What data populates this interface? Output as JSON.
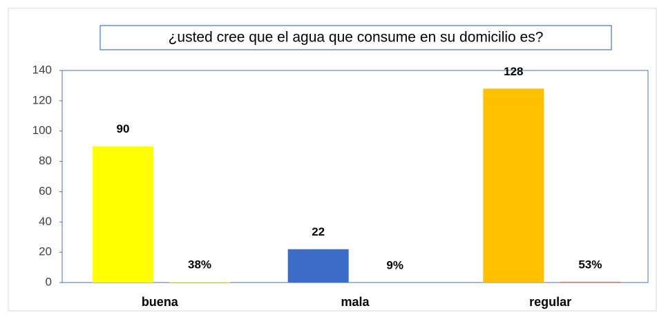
{
  "chart_data": {
    "type": "bar",
    "title": "¿usted cree que el agua que consume en su domicilio es?",
    "categories": [
      "buena",
      "mala",
      "regular"
    ],
    "series": [
      {
        "colors": [
          "#ffff00",
          "#3a6cc8",
          "#ffc000"
        ],
        "values": [
          90,
          22,
          128
        ]
      },
      {
        "colors": [
          "#ffff00",
          "#3a6cc8",
          "#ed7d31"
        ],
        "values": [
          0.38,
          0.09,
          0.53
        ],
        "value_labels": [
          "38%",
          "9%",
          "53%"
        ]
      }
    ],
    "ylim": [
      0,
      140
    ],
    "yticks": [
      0,
      20,
      40,
      60,
      80,
      100,
      120,
      140
    ],
    "grid": false
  }
}
